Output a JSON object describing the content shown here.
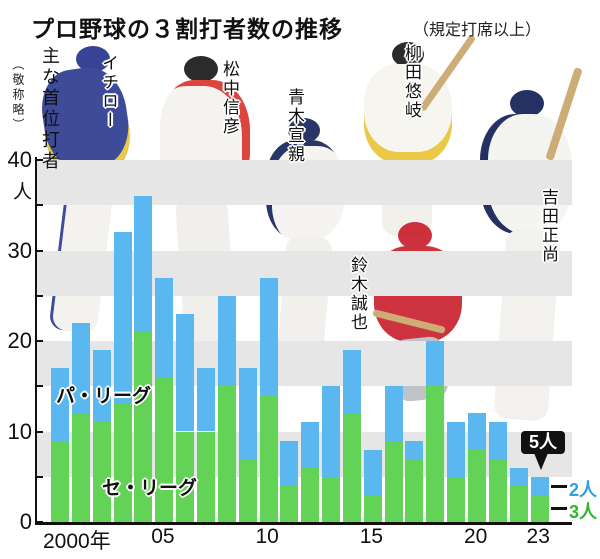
{
  "header": {
    "title": "プロ野球の３割打者数の推移",
    "note": "（規定打席以上）",
    "side_note": "主な首位打者",
    "side_note_sub": "（敬称略）"
  },
  "y_axis": {
    "unit": "人",
    "labels": [
      "40",
      "30",
      "20",
      "10",
      "0"
    ]
  },
  "x_axis": {
    "labels": [
      "2000年",
      "05",
      "10",
      "15",
      "20",
      "23"
    ]
  },
  "series_labels": {
    "pacific": "パ・リーグ",
    "central": "セ・リーグ"
  },
  "annotation": {
    "total": "5人",
    "pacific_count": "2人",
    "central_count": "3人"
  },
  "players": [
    {
      "name": "イチロー"
    },
    {
      "name": "松中信彦"
    },
    {
      "name": "青木宣親"
    },
    {
      "name": "柳田悠岐"
    },
    {
      "name": "鈴木誠也"
    },
    {
      "name": "吉田正尚"
    }
  ],
  "colors": {
    "pacific_blue": "#5bb7ef",
    "central_green": "#62d356",
    "stripe_gray": "#e6e6e6",
    "callout_bg": "#111111",
    "pacific_label_blue": "#2e9fe8",
    "central_label_green": "#2eb62e"
  },
  "chart_data": {
    "type": "bar",
    "stacked": true,
    "title": "プロ野球の3割打者数の推移（規定打席以上）",
    "categories": [
      2000,
      2001,
      2002,
      2003,
      2004,
      2005,
      2006,
      2007,
      2008,
      2009,
      2010,
      2011,
      2012,
      2013,
      2014,
      2015,
      2016,
      2017,
      2018,
      2019,
      2020,
      2021,
      2022,
      2023
    ],
    "series": [
      {
        "name": "セ・リーグ",
        "color": "#62d356",
        "values": [
          9,
          12,
          11,
          13,
          21,
          16,
          10,
          10,
          15,
          7,
          14,
          4,
          6,
          5,
          12,
          3,
          9,
          7,
          15,
          5,
          8,
          7,
          4,
          3
        ]
      },
      {
        "name": "パ・リーグ",
        "color": "#5bb7ef",
        "values": [
          8,
          10,
          8,
          19,
          15,
          11,
          13,
          7,
          10,
          10,
          13,
          5,
          5,
          10,
          7,
          5,
          6,
          2,
          5,
          6,
          4,
          4,
          2,
          2
        ]
      }
    ],
    "ylabel": "人",
    "ylim": [
      0,
      40
    ],
    "grid_bands_gray": [
      [
        5,
        10
      ],
      [
        15,
        20
      ],
      [
        25,
        30
      ],
      [
        35,
        40
      ]
    ],
    "legend_position": "inside-bars",
    "annotations": {
      "year_2023_total": 5,
      "year_2023_pacific": 2,
      "year_2023_central": 3
    }
  }
}
